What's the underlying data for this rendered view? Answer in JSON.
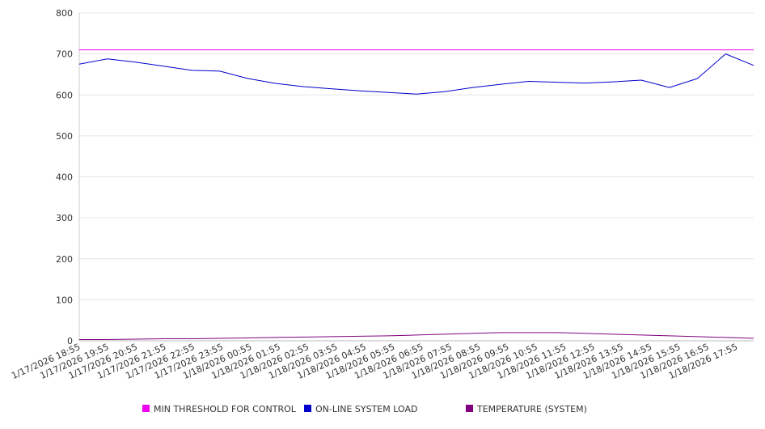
{
  "chart_data": {
    "type": "line",
    "y_range": [
      0,
      800
    ],
    "y_ticks": [
      0,
      100,
      200,
      300,
      400,
      500,
      600,
      700,
      800
    ],
    "x_tick_labels": [
      "1/17/2026 18:55",
      "1/17/2026 19:55",
      "1/17/2026 20:55",
      "1/17/2026 21:55",
      "1/17/2026 22:55",
      "1/17/2026 23:55",
      "1/18/2026 00:55",
      "1/18/2026 01:55",
      "1/18/2026 02:55",
      "1/18/2026 03:55",
      "1/18/2026 04:55",
      "1/18/2026 05:55",
      "1/18/2026 06:55",
      "1/18/2026 07:55",
      "1/18/2026 08:55",
      "1/18/2026 09:55",
      "1/18/2026 10:55",
      "1/18/2026 11:55",
      "1/18/2026 12:55",
      "1/18/2026 13:55",
      "1/18/2026 14:55",
      "1/18/2026 15:55",
      "1/18/2026 16:55",
      "1/18/2026 17:55"
    ],
    "grid": true,
    "legend_position": "bottom",
    "series": [
      {
        "name": "MIN THRESHOLD FOR CONTROL",
        "color": "#ee00ee",
        "values": [
          710,
          710,
          710,
          710,
          710,
          710,
          710,
          710,
          710,
          710,
          710,
          710,
          710,
          710,
          710,
          710,
          710,
          710,
          710,
          710,
          710,
          710,
          710,
          710,
          710
        ]
      },
      {
        "name": "ON-LINE SYSTEM LOAD",
        "color": "#0000cc",
        "values": [
          675,
          688,
          680,
          670,
          660,
          658,
          640,
          628,
          620,
          615,
          610,
          606,
          602,
          608,
          618,
          626,
          633,
          631,
          629,
          632,
          636,
          618,
          640,
          700,
          672
        ]
      },
      {
        "name": "TEMPERATURE (SYSTEM)",
        "color": "#800080",
        "values": [
          3,
          3,
          4,
          5,
          5,
          6,
          7,
          8,
          9,
          10,
          11,
          12,
          14,
          16,
          18,
          20,
          20,
          20,
          18,
          16,
          14,
          12,
          10,
          8,
          6
        ]
      }
    ]
  }
}
